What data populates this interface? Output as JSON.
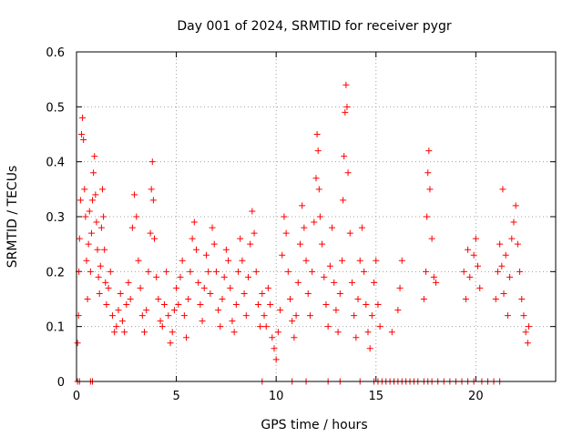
{
  "chart_data": {
    "type": "scatter",
    "title": "Day 001 of 2024, SRMTID for receiver pygr",
    "xlabel": "GPS time / hours",
    "ylabel": "SRMTID / TECUs",
    "xlim": [
      0,
      24
    ],
    "ylim": [
      0,
      0.6
    ],
    "xticks": [
      0,
      5,
      10,
      15,
      20
    ],
    "xtick_labels": [
      "0",
      "5",
      "10",
      "15",
      "20"
    ],
    "yticks": [
      0,
      0.1,
      0.2,
      0.3,
      0.4,
      0.5,
      0.6
    ],
    "ytick_labels": [
      "0",
      "0.1",
      "0.2",
      "0.3",
      "0.4",
      "0.5",
      "0.6"
    ],
    "grid": true,
    "legend": "none",
    "series": [
      {
        "name": "SRMTID",
        "color": "#ff0000",
        "marker": "plus",
        "points": [
          [
            0.05,
            0.07
          ],
          [
            0.1,
            0.12
          ],
          [
            0.12,
            0.2
          ],
          [
            0.15,
            0.26
          ],
          [
            0.2,
            0.33
          ],
          [
            0.25,
            0.45
          ],
          [
            0.3,
            0.48
          ],
          [
            0.35,
            0.44
          ],
          [
            0.4,
            0.35
          ],
          [
            0.45,
            0.3
          ],
          [
            0.5,
            0.22
          ],
          [
            0.55,
            0.15
          ],
          [
            0.6,
            0.25
          ],
          [
            0.65,
            0.31
          ],
          [
            0.7,
            0.2
          ],
          [
            0.75,
            0.27
          ],
          [
            0.8,
            0.33
          ],
          [
            0.85,
            0.38
          ],
          [
            0.9,
            0.41
          ],
          [
            0.95,
            0.34
          ],
          [
            1.0,
            0.29
          ],
          [
            1.05,
            0.24
          ],
          [
            1.1,
            0.19
          ],
          [
            1.15,
            0.16
          ],
          [
            1.2,
            0.21
          ],
          [
            1.25,
            0.28
          ],
          [
            1.3,
            0.35
          ],
          [
            1.35,
            0.3
          ],
          [
            1.4,
            0.24
          ],
          [
            1.45,
            0.18
          ],
          [
            1.5,
            0.14
          ],
          [
            1.6,
            0.17
          ],
          [
            1.7,
            0.2
          ],
          [
            1.8,
            0.12
          ],
          [
            1.9,
            0.09
          ],
          [
            2.0,
            0.1
          ],
          [
            2.1,
            0.13
          ],
          [
            2.2,
            0.16
          ],
          [
            2.3,
            0.11
          ],
          [
            2.4,
            0.09
          ],
          [
            2.5,
            0.14
          ],
          [
            2.6,
            0.18
          ],
          [
            2.7,
            0.15
          ],
          [
            2.8,
            0.28
          ],
          [
            2.9,
            0.34
          ],
          [
            3.0,
            0.3
          ],
          [
            3.1,
            0.22
          ],
          [
            3.2,
            0.17
          ],
          [
            3.3,
            0.12
          ],
          [
            3.4,
            0.09
          ],
          [
            3.5,
            0.13
          ],
          [
            3.6,
            0.2
          ],
          [
            3.7,
            0.27
          ],
          [
            3.75,
            0.35
          ],
          [
            3.8,
            0.4
          ],
          [
            3.85,
            0.33
          ],
          [
            3.9,
            0.26
          ],
          [
            4.0,
            0.19
          ],
          [
            4.1,
            0.15
          ],
          [
            4.2,
            0.11
          ],
          [
            4.3,
            0.1
          ],
          [
            4.4,
            0.14
          ],
          [
            4.5,
            0.2
          ],
          [
            4.6,
            0.12
          ],
          [
            4.7,
            0.07
          ],
          [
            4.8,
            0.09
          ],
          [
            4.9,
            0.13
          ],
          [
            5.0,
            0.17
          ],
          [
            5.1,
            0.14
          ],
          [
            5.2,
            0.19
          ],
          [
            5.3,
            0.22
          ],
          [
            5.4,
            0.12
          ],
          [
            5.5,
            0.08
          ],
          [
            5.6,
            0.15
          ],
          [
            5.7,
            0.2
          ],
          [
            5.8,
            0.26
          ],
          [
            5.9,
            0.29
          ],
          [
            6.0,
            0.24
          ],
          [
            6.1,
            0.18
          ],
          [
            6.2,
            0.14
          ],
          [
            6.3,
            0.11
          ],
          [
            6.4,
            0.17
          ],
          [
            6.5,
            0.23
          ],
          [
            6.6,
            0.2
          ],
          [
            6.7,
            0.16
          ],
          [
            6.8,
            0.28
          ],
          [
            6.9,
            0.25
          ],
          [
            7.0,
            0.2
          ],
          [
            7.1,
            0.13
          ],
          [
            7.2,
            0.1
          ],
          [
            7.3,
            0.15
          ],
          [
            7.4,
            0.19
          ],
          [
            7.5,
            0.24
          ],
          [
            7.6,
            0.22
          ],
          [
            7.7,
            0.17
          ],
          [
            7.8,
            0.11
          ],
          [
            7.9,
            0.09
          ],
          [
            8.0,
            0.14
          ],
          [
            8.1,
            0.2
          ],
          [
            8.2,
            0.26
          ],
          [
            8.3,
            0.22
          ],
          [
            8.4,
            0.16
          ],
          [
            8.5,
            0.12
          ],
          [
            8.6,
            0.19
          ],
          [
            8.7,
            0.25
          ],
          [
            8.8,
            0.31
          ],
          [
            8.9,
            0.27
          ],
          [
            9.0,
            0.2
          ],
          [
            9.1,
            0.14
          ],
          [
            9.2,
            0.1
          ],
          [
            9.3,
            0.16
          ],
          [
            9.4,
            0.12
          ],
          [
            9.5,
            0.1
          ],
          [
            9.6,
            0.17
          ],
          [
            9.7,
            0.14
          ],
          [
            9.8,
            0.08
          ],
          [
            9.9,
            0.06
          ],
          [
            10.0,
            0.04
          ],
          [
            10.1,
            0.09
          ],
          [
            10.2,
            0.13
          ],
          [
            10.3,
            0.23
          ],
          [
            10.4,
            0.3
          ],
          [
            10.5,
            0.27
          ],
          [
            10.6,
            0.2
          ],
          [
            10.7,
            0.15
          ],
          [
            10.8,
            0.11
          ],
          [
            10.9,
            0.08
          ],
          [
            11.0,
            0.12
          ],
          [
            11.1,
            0.18
          ],
          [
            11.2,
            0.25
          ],
          [
            11.3,
            0.32
          ],
          [
            11.4,
            0.28
          ],
          [
            11.5,
            0.22
          ],
          [
            11.6,
            0.16
          ],
          [
            11.7,
            0.12
          ],
          [
            11.8,
            0.2
          ],
          [
            11.9,
            0.29
          ],
          [
            12.0,
            0.37
          ],
          [
            12.05,
            0.45
          ],
          [
            12.1,
            0.42
          ],
          [
            12.15,
            0.35
          ],
          [
            12.2,
            0.3
          ],
          [
            12.3,
            0.25
          ],
          [
            12.4,
            0.19
          ],
          [
            12.5,
            0.14
          ],
          [
            12.6,
            0.1
          ],
          [
            12.7,
            0.21
          ],
          [
            12.8,
            0.28
          ],
          [
            12.9,
            0.18
          ],
          [
            13.0,
            0.13
          ],
          [
            13.1,
            0.09
          ],
          [
            13.2,
            0.16
          ],
          [
            13.3,
            0.22
          ],
          [
            13.35,
            0.33
          ],
          [
            13.4,
            0.41
          ],
          [
            13.45,
            0.49
          ],
          [
            13.5,
            0.54
          ],
          [
            13.55,
            0.5
          ],
          [
            13.6,
            0.38
          ],
          [
            13.7,
            0.27
          ],
          [
            13.8,
            0.18
          ],
          [
            13.9,
            0.12
          ],
          [
            14.0,
            0.08
          ],
          [
            14.1,
            0.15
          ],
          [
            14.2,
            0.22
          ],
          [
            14.3,
            0.28
          ],
          [
            14.4,
            0.2
          ],
          [
            14.5,
            0.14
          ],
          [
            14.6,
            0.09
          ],
          [
            14.7,
            0.06
          ],
          [
            14.8,
            0.12
          ],
          [
            14.9,
            0.18
          ],
          [
            15.0,
            0.22
          ],
          [
            15.1,
            0.14
          ],
          [
            15.2,
            0.1
          ],
          [
            15.8,
            0.09
          ],
          [
            16.1,
            0.13
          ],
          [
            16.2,
            0.17
          ],
          [
            16.3,
            0.22
          ],
          [
            17.4,
            0.15
          ],
          [
            17.5,
            0.2
          ],
          [
            17.55,
            0.3
          ],
          [
            17.6,
            0.38
          ],
          [
            17.65,
            0.42
          ],
          [
            17.7,
            0.35
          ],
          [
            17.8,
            0.26
          ],
          [
            17.9,
            0.19
          ],
          [
            18.0,
            0.18
          ],
          [
            19.4,
            0.2
          ],
          [
            19.5,
            0.15
          ],
          [
            19.6,
            0.24
          ],
          [
            19.7,
            0.19
          ],
          [
            19.9,
            0.23
          ],
          [
            20.0,
            0.26
          ],
          [
            20.1,
            0.21
          ],
          [
            20.2,
            0.17
          ],
          [
            21.0,
            0.15
          ],
          [
            21.1,
            0.2
          ],
          [
            21.2,
            0.25
          ],
          [
            21.3,
            0.21
          ],
          [
            21.35,
            0.35
          ],
          [
            21.4,
            0.16
          ],
          [
            21.5,
            0.23
          ],
          [
            21.6,
            0.12
          ],
          [
            21.7,
            0.19
          ],
          [
            21.8,
            0.26
          ],
          [
            21.9,
            0.29
          ],
          [
            22.0,
            0.32
          ],
          [
            22.1,
            0.25
          ],
          [
            22.2,
            0.2
          ],
          [
            22.3,
            0.15
          ],
          [
            22.4,
            0.12
          ],
          [
            22.5,
            0.09
          ],
          [
            22.6,
            0.07
          ],
          [
            22.65,
            0.1
          ]
        ],
        "zero_points": [
          0.05,
          0.15,
          0.7,
          0.8,
          9.3,
          10.8,
          11.5,
          12.6,
          13.2,
          14.2,
          14.9,
          15.1,
          15.3,
          15.5,
          15.7,
          15.9,
          16.1,
          16.3,
          16.5,
          16.7,
          16.9,
          17.1,
          17.4,
          17.6,
          17.8,
          18.1,
          18.4,
          18.7,
          19.0,
          19.3,
          19.6,
          19.9,
          20.3,
          20.6,
          20.9,
          21.2
        ]
      }
    ]
  }
}
